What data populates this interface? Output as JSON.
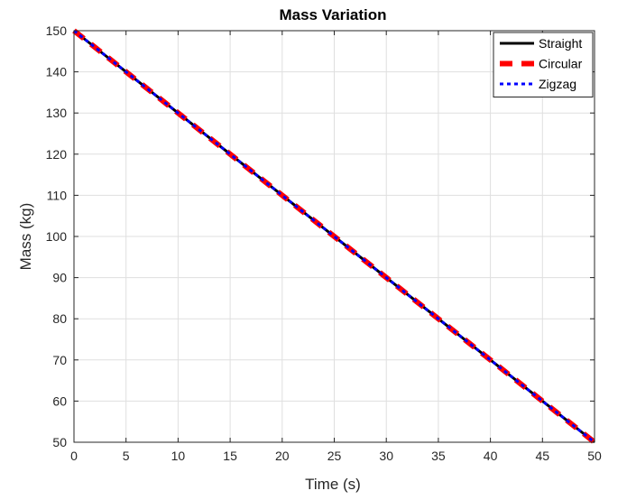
{
  "chart_data": {
    "type": "line",
    "title": "Mass Variation",
    "xlabel": "Time (s)",
    "ylabel": "Mass (kg)",
    "xlim": [
      0,
      50
    ],
    "ylim": [
      50,
      150
    ],
    "xticks": [
      0,
      5,
      10,
      15,
      20,
      25,
      30,
      35,
      40,
      45,
      50
    ],
    "yticks": [
      50,
      60,
      70,
      80,
      90,
      100,
      110,
      120,
      130,
      140,
      150
    ],
    "grid": true,
    "legend_position": "top-right",
    "series": [
      {
        "name": "Straight",
        "color": "#000000",
        "style": "solid",
        "x": [
          0,
          50
        ],
        "y": [
          150,
          50
        ]
      },
      {
        "name": "Circular",
        "color": "#ff0000",
        "style": "dashed",
        "x": [
          0,
          50
        ],
        "y": [
          150,
          50
        ]
      },
      {
        "name": "Zigzag",
        "color": "#0000ff",
        "style": "dotted",
        "x": [
          0,
          50
        ],
        "y": [
          150,
          50
        ]
      }
    ]
  }
}
